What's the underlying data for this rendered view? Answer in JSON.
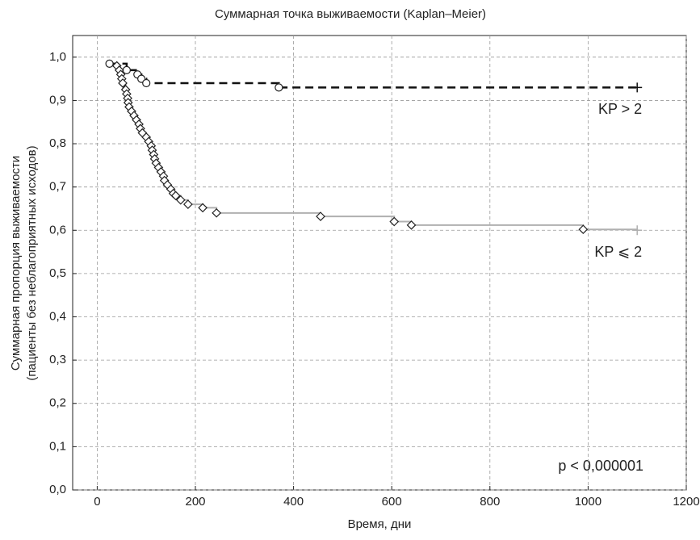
{
  "chart_data": {
    "type": "km",
    "title": "Суммарная точка выживаемости (Kaplan–Meier)",
    "xlabel": "Время, дни",
    "ylabel": [
      "Суммарная пропорция выживаемости",
      "(пациенты без неблагоприятных исходов)"
    ],
    "annotation": "p < 0,000001",
    "xlim": [
      -50,
      1200
    ],
    "ylim": [
      0,
      1.05
    ],
    "xticks": [
      0,
      200,
      400,
      600,
      800,
      1000,
      1200
    ],
    "yticks": [
      {
        "value": 0,
        "label": "0,0"
      },
      {
        "value": 0.1,
        "label": "0,1"
      },
      {
        "value": 0.2,
        "label": "0,2"
      },
      {
        "value": 0.3,
        "label": "0,3"
      },
      {
        "value": 0.4,
        "label": "0,4"
      },
      {
        "value": 0.5,
        "label": "0,5"
      },
      {
        "value": 0.6,
        "label": "0,6"
      },
      {
        "value": 0.7,
        "label": "0,7"
      },
      {
        "value": 0.8,
        "label": "0,8"
      },
      {
        "value": 0.9,
        "label": "0,9"
      },
      {
        "value": 1.0,
        "label": "1,0"
      }
    ],
    "grid": true,
    "series": [
      {
        "name": "KP > 2",
        "color": "#111111",
        "dash": true,
        "marker": "circle",
        "x": [
          25,
          60,
          82,
          90,
          100,
          370,
          1100
        ],
        "values": [
          0.985,
          0.97,
          0.96,
          0.95,
          0.94,
          0.93,
          0.93
        ]
      },
      {
        "name": "KP ⩽ 2",
        "color": "#b0b0b0",
        "dash": false,
        "marker": "diamond",
        "x": [
          40,
          45,
          48,
          50,
          52,
          58,
          60,
          62,
          63,
          65,
          70,
          75,
          80,
          85,
          88,
          92,
          100,
          105,
          110,
          112,
          115,
          117,
          120,
          125,
          130,
          135,
          137,
          143,
          150,
          155,
          160,
          170,
          185,
          215,
          243,
          455,
          605,
          640,
          990,
          1100
        ],
        "values": [
          0.98,
          0.97,
          0.96,
          0.95,
          0.94,
          0.925,
          0.915,
          0.905,
          0.895,
          0.885,
          0.875,
          0.865,
          0.855,
          0.845,
          0.835,
          0.825,
          0.815,
          0.805,
          0.795,
          0.785,
          0.775,
          0.765,
          0.755,
          0.745,
          0.735,
          0.725,
          0.715,
          0.705,
          0.695,
          0.685,
          0.68,
          0.67,
          0.66,
          0.652,
          0.64,
          0.632,
          0.62,
          0.612,
          0.602,
          0.6
        ]
      }
    ]
  }
}
